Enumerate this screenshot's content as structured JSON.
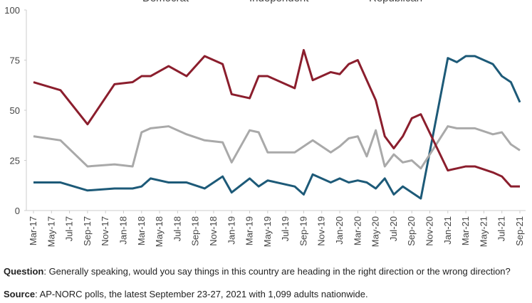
{
  "chart_data": {
    "type": "line",
    "x": [
      "2017-03",
      "2017-06",
      "2017-09",
      "2017-12",
      "2018-02",
      "2018-03",
      "2018-04",
      "2018-06",
      "2018-08",
      "2018-10",
      "2018-12",
      "2019-01",
      "2019-03",
      "2019-04",
      "2019-05",
      "2019-08",
      "2019-09",
      "2019-10",
      "2019-12",
      "2020-01",
      "2020-02",
      "2020-03",
      "2020-04",
      "2020-05",
      "2020-06",
      "2020-07",
      "2020-08",
      "2020-09",
      "2020-10",
      "2021-01",
      "2021-02",
      "2021-03",
      "2021-04",
      "2021-06",
      "2021-07",
      "2021-08",
      "2021-09"
    ],
    "series": [
      {
        "name": "Democrat",
        "color": "#1d5a78",
        "values": [
          14,
          14,
          10,
          11,
          11,
          12,
          16,
          14,
          14,
          11,
          17,
          9,
          16,
          12,
          15,
          12,
          8,
          18,
          14,
          16,
          14,
          15,
          14,
          11,
          16,
          8,
          12,
          9,
          6,
          76,
          74,
          77,
          77,
          73,
          67,
          64,
          54
        ]
      },
      {
        "name": "Independent",
        "color": "#a9a9a9",
        "values": [
          37,
          35,
          22,
          23,
          22,
          39,
          41,
          42,
          38,
          35,
          34,
          24,
          40,
          39,
          29,
          29,
          32,
          35,
          29,
          32,
          36,
          37,
          27,
          40,
          22,
          28,
          24,
          25,
          21,
          42,
          41,
          41,
          41,
          38,
          39,
          33,
          30
        ]
      },
      {
        "name": "Republican",
        "color": "#8b1e2d",
        "values": [
          64,
          60,
          43,
          63,
          64,
          67,
          67,
          72,
          67,
          77,
          73,
          58,
          56,
          67,
          67,
          61,
          80,
          65,
          69,
          68,
          73,
          75,
          65,
          55,
          37,
          31,
          37,
          46,
          48,
          20,
          21,
          22,
          22,
          19,
          17,
          12,
          12
        ]
      }
    ],
    "xlim": [
      "2017-03",
      "2021-09"
    ],
    "xticks": [
      {
        "value": "2017-03",
        "label": "Mar-17"
      },
      {
        "value": "2017-05",
        "label": "May-17"
      },
      {
        "value": "2017-07",
        "label": "Jul-17"
      },
      {
        "value": "2017-09",
        "label": "Sep-17"
      },
      {
        "value": "2017-11",
        "label": "Nov-17"
      },
      {
        "value": "2018-01",
        "label": "Jan-18"
      },
      {
        "value": "2018-03",
        "label": "Mar-18"
      },
      {
        "value": "2018-05",
        "label": "May-18"
      },
      {
        "value": "2018-07",
        "label": "Jul-18"
      },
      {
        "value": "2018-09",
        "label": "Sep-18"
      },
      {
        "value": "2018-11",
        "label": "Nov-18"
      },
      {
        "value": "2019-01",
        "label": "Jan-19"
      },
      {
        "value": "2019-03",
        "label": "Mar-19"
      },
      {
        "value": "2019-05",
        "label": "May-19"
      },
      {
        "value": "2019-07",
        "label": "Jul-19"
      },
      {
        "value": "2019-09",
        "label": "Sep-19"
      },
      {
        "value": "2019-11",
        "label": "Nov-19"
      },
      {
        "value": "2020-01",
        "label": "Jan-20"
      },
      {
        "value": "2020-03",
        "label": "Mar-20"
      },
      {
        "value": "2020-05",
        "label": "May-20"
      },
      {
        "value": "2020-07",
        "label": "Jul-20"
      },
      {
        "value": "2020-09",
        "label": "Sep-20"
      },
      {
        "value": "2020-11",
        "label": "Nov-20"
      },
      {
        "value": "2021-01",
        "label": "Jan-21"
      },
      {
        "value": "2021-03",
        "label": "Mar-21"
      },
      {
        "value": "2021-05",
        "label": "May-21"
      },
      {
        "value": "2021-07",
        "label": "Jul-21"
      },
      {
        "value": "2021-09",
        "label": "Sep-21"
      }
    ],
    "ylim": [
      0,
      100
    ],
    "yticks": [
      0,
      25,
      50,
      75,
      100
    ],
    "grid": false,
    "notes": {
      "question_label": "Question",
      "question": ": Generally speaking, would you say things in this country are heading in the right direction or the wrong direction?",
      "source_label": "Source",
      "source": ": AP-NORC polls, the latest September 23-27, 2021 with 1,099 adults nationwide."
    }
  }
}
